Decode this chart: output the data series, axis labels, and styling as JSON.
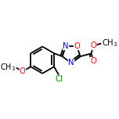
{
  "background_color": "#ffffff",
  "bond_color": "#000000",
  "bond_width": 1.3,
  "figsize": [
    1.52,
    1.52
  ],
  "dpi": 100,
  "atoms": {
    "O_red": "#ff0000",
    "N_blue": "#0000ff",
    "Cl_green": "#008000",
    "C_black": "#000000"
  },
  "xlim": [
    0.0,
    1.0
  ],
  "ylim": [
    0.1,
    0.9
  ]
}
